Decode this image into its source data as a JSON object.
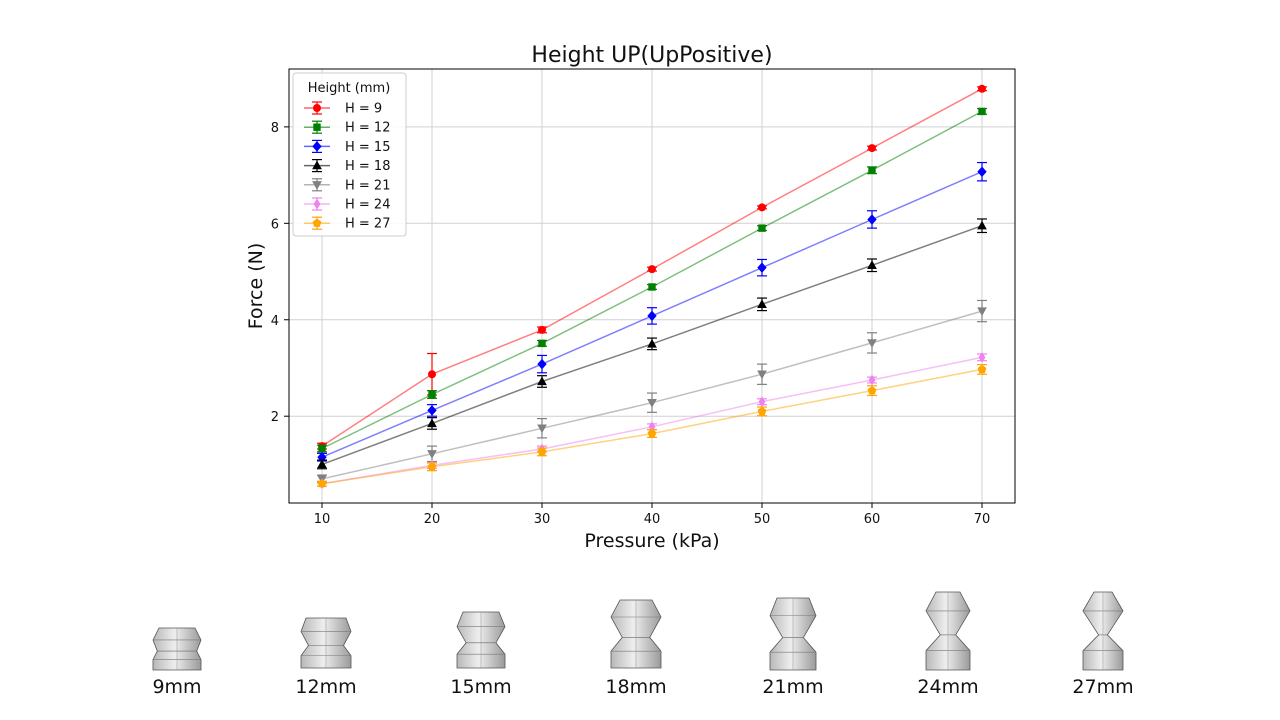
{
  "chart_data": {
    "type": "line",
    "title": "Height UP(UpPositive)",
    "xlabel": "Pressure (kPa)",
    "ylabel": "Force (N)",
    "x": [
      10,
      20,
      30,
      40,
      50,
      60,
      70
    ],
    "xticks": [
      "10",
      "20",
      "30",
      "40",
      "50",
      "60",
      "70"
    ],
    "yticks": [
      "2",
      "4",
      "6",
      "8"
    ],
    "xlim": [
      7,
      73
    ],
    "ylim": [
      0.2,
      9.2
    ],
    "grid": true,
    "legend_title": "Height (mm)",
    "legend_position": "top-left",
    "series": [
      {
        "name": "H = 9",
        "color": "#ff0000",
        "marker": "circle",
        "values": [
          1.38,
          2.87,
          3.79,
          5.05,
          6.33,
          7.56,
          8.79
        ],
        "errors": [
          0.06,
          0.43,
          0.06,
          0.04,
          0.03,
          0.04,
          0.04
        ]
      },
      {
        "name": "H = 12",
        "color": "#008000",
        "marker": "square",
        "values": [
          1.33,
          2.45,
          3.51,
          4.68,
          5.9,
          7.1,
          8.32
        ],
        "errors": [
          0.07,
          0.08,
          0.06,
          0.05,
          0.05,
          0.07,
          0.06
        ]
      },
      {
        "name": "H = 15",
        "color": "#0000ff",
        "marker": "diamond",
        "values": [
          1.15,
          2.12,
          3.08,
          4.08,
          5.08,
          6.08,
          7.07
        ],
        "errors": [
          0.08,
          0.12,
          0.18,
          0.17,
          0.17,
          0.18,
          0.19
        ]
      },
      {
        "name": "H = 18",
        "color": "#000000",
        "marker": "triangle-up",
        "values": [
          1.0,
          1.85,
          2.72,
          3.5,
          4.32,
          5.13,
          5.95
        ],
        "errors": [
          0.09,
          0.12,
          0.12,
          0.12,
          0.13,
          0.13,
          0.14
        ]
      },
      {
        "name": "H = 21",
        "color": "#808080",
        "marker": "triangle-down",
        "values": [
          0.7,
          1.22,
          1.75,
          2.28,
          2.87,
          3.52,
          4.18
        ],
        "errors": [
          0.08,
          0.16,
          0.2,
          0.2,
          0.21,
          0.21,
          0.22
        ]
      },
      {
        "name": "H = 24",
        "color": "#ee82ee",
        "marker": "diamond-thin",
        "values": [
          0.6,
          0.98,
          1.32,
          1.78,
          2.3,
          2.75,
          3.22
        ],
        "errors": [
          0.05,
          0.06,
          0.06,
          0.06,
          0.06,
          0.06,
          0.07
        ]
      },
      {
        "name": "H = 27",
        "color": "#ffa500",
        "marker": "pentagon",
        "values": [
          0.6,
          0.95,
          1.26,
          1.64,
          2.1,
          2.53,
          2.97
        ],
        "errors": [
          0.05,
          0.08,
          0.08,
          0.08,
          0.09,
          0.1,
          0.1
        ]
      }
    ]
  },
  "shapes": [
    {
      "label": "9mm"
    },
    {
      "label": "12mm"
    },
    {
      "label": "15mm"
    },
    {
      "label": "18mm"
    },
    {
      "label": "21mm"
    },
    {
      "label": "24mm"
    },
    {
      "label": "27mm"
    }
  ]
}
